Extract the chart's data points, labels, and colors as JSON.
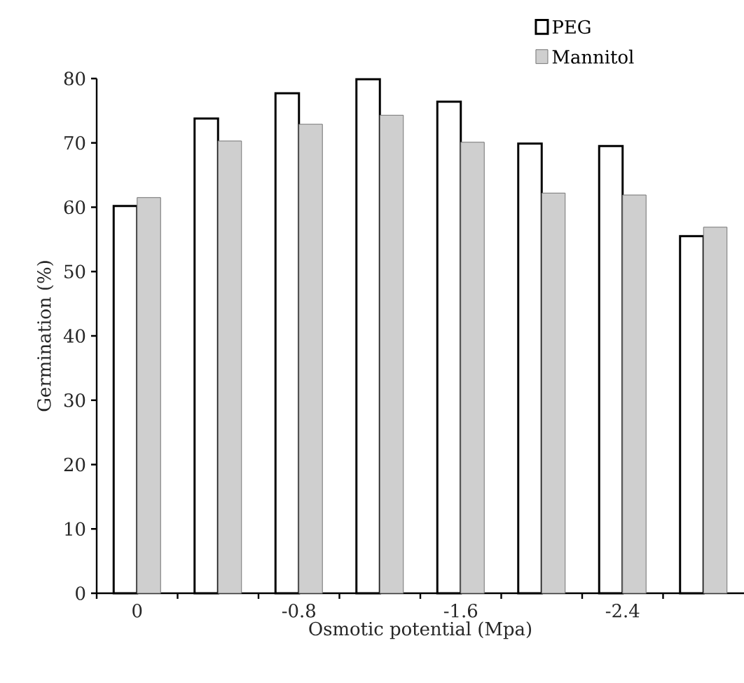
{
  "chart_data": {
    "type": "bar",
    "xlabel": "Osmotic potential (Mpa)",
    "ylabel": "Germination (%)",
    "categories": [
      "0",
      null,
      "-0.8",
      null,
      "-1.6",
      null,
      "-2.4",
      null
    ],
    "series": [
      {
        "name": "PEG",
        "color": "#ffffff",
        "values": [
          60.2,
          73.8,
          77.7,
          79.9,
          76.4,
          69.9,
          69.5,
          55.5
        ]
      },
      {
        "name": "Mannitol",
        "color": "#cfcfcf",
        "values": [
          61.5,
          70.3,
          72.9,
          74.3,
          70.1,
          62.2,
          61.9,
          56.9
        ]
      }
    ],
    "ylim": [
      0,
      80
    ],
    "yticks": [
      0,
      10,
      20,
      30,
      40,
      50,
      60,
      70,
      80
    ],
    "grid": false,
    "legend": "top right"
  }
}
